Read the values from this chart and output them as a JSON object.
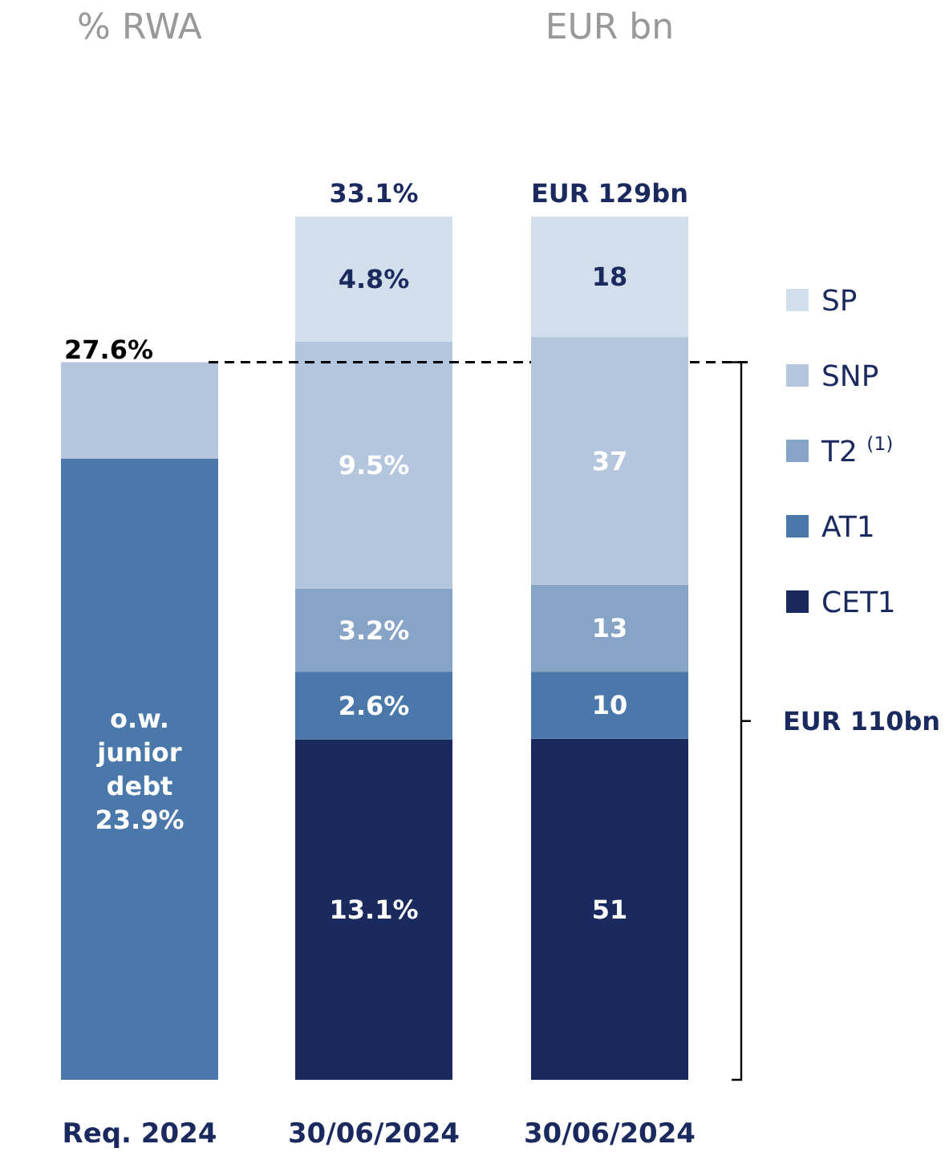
{
  "chart_data": [
    {
      "type": "bar",
      "title": "% RWA",
      "categories": [
        "Req. 2024",
        "30/06/2024"
      ],
      "stacked": true,
      "legend": false,
      "series": [
        {
          "color": "#4a78ab",
          "values": [
            23.9,
            null
          ],
          "value_labels": [
            "o.w. junior debt 23.9%",
            null
          ]
        },
        {
          "color": "#b4c6de",
          "values": [
            3.7,
            null
          ],
          "value_labels": [
            null,
            null
          ]
        },
        {
          "color": "#1b2a5e",
          "values": [
            null,
            13.1
          ],
          "value_labels": [
            null,
            "13.1%"
          ]
        },
        {
          "color": "#4a78ab",
          "values": [
            null,
            2.6
          ],
          "value_labels": [
            null,
            "2.6%"
          ]
        },
        {
          "color": "#87a3c6",
          "values": [
            null,
            3.2
          ],
          "value_labels": [
            null,
            "3.2%"
          ]
        },
        {
          "color": "#b4c6de",
          "values": [
            null,
            9.5
          ],
          "value_labels": [
            null,
            "9.5%"
          ]
        },
        {
          "color": "#d3deed",
          "values": [
            null,
            4.8
          ],
          "value_labels": [
            null,
            "4.8%"
          ]
        }
      ],
      "totals": [
        null,
        "33.1%"
      ],
      "ref_lines": [
        {
          "axis": "y",
          "value": 27.6,
          "label": "27.6%",
          "line_style": "dashed",
          "color": "#000000"
        }
      ]
    },
    {
      "type": "bar",
      "title": "EUR bn",
      "categories": [
        "30/06/2024"
      ],
      "stacked": true,
      "legend": "right",
      "data_labels": true,
      "series": [
        {
          "name": "CET1",
          "color": "#1b2a5e",
          "values": [
            51
          ]
        },
        {
          "name": "AT1",
          "color": "#4a78ab",
          "values": [
            10
          ]
        },
        {
          "name": "T2 $^{(1)}$",
          "color": "#87a3c6",
          "values": [
            13
          ]
        },
        {
          "name": "SNP",
          "color": "#b4c6de",
          "values": [
            37
          ]
        },
        {
          "name": "SP",
          "color": "#d3deed",
          "values": [
            18
          ]
        }
      ],
      "totals": [
        "EUR 129bn"
      ],
      "annotations": [
        "EUR 110bn"
      ]
    }
  ]
}
